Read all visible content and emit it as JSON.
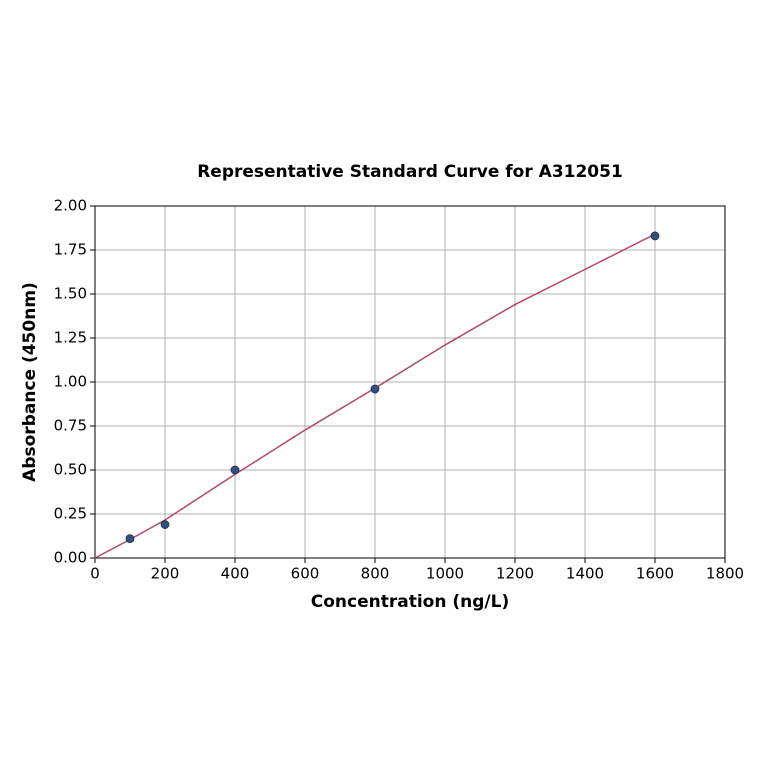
{
  "chart_data": {
    "type": "scatter",
    "title": "Representative Standard Curve for A312051",
    "x_label": "Concentration (ng/L)",
    "y_label": "Absorbance (450nm)",
    "series": [
      {
        "x": [
          100,
          200,
          400,
          800,
          1600
        ],
        "values": [
          0.11,
          0.19,
          0.5,
          0.96,
          1.83
        ],
        "color": "#34507a"
      }
    ],
    "fit": {
      "x": [
        0,
        100,
        200,
        400,
        600,
        800,
        1000,
        1200,
        1400,
        1600
      ],
      "values": [
        0,
        0.105,
        0.216,
        0.475,
        0.727,
        0.965,
        1.21,
        1.44,
        1.64,
        1.84
      ],
      "color": "#b5466a"
    },
    "xlim": [
      0,
      1800
    ],
    "xticks": [
      0,
      200,
      400,
      600,
      800,
      1000,
      1200,
      1400,
      1600,
      1800
    ],
    "ylim": [
      0,
      2
    ],
    "yticks": [
      {
        "value": 0,
        "label": "0.00"
      },
      {
        "value": 0.25,
        "label": "0.25"
      },
      {
        "value": 0.5,
        "label": "0.50"
      },
      {
        "value": 0.75,
        "label": "0.75"
      },
      {
        "value": 1,
        "label": "1.00"
      },
      {
        "value": 1.25,
        "label": "1.25"
      },
      {
        "value": 1.5,
        "label": "1.50"
      },
      {
        "value": 1.75,
        "label": "1.75"
      },
      {
        "value": 2,
        "label": "2.00"
      }
    ],
    "grid": true
  }
}
